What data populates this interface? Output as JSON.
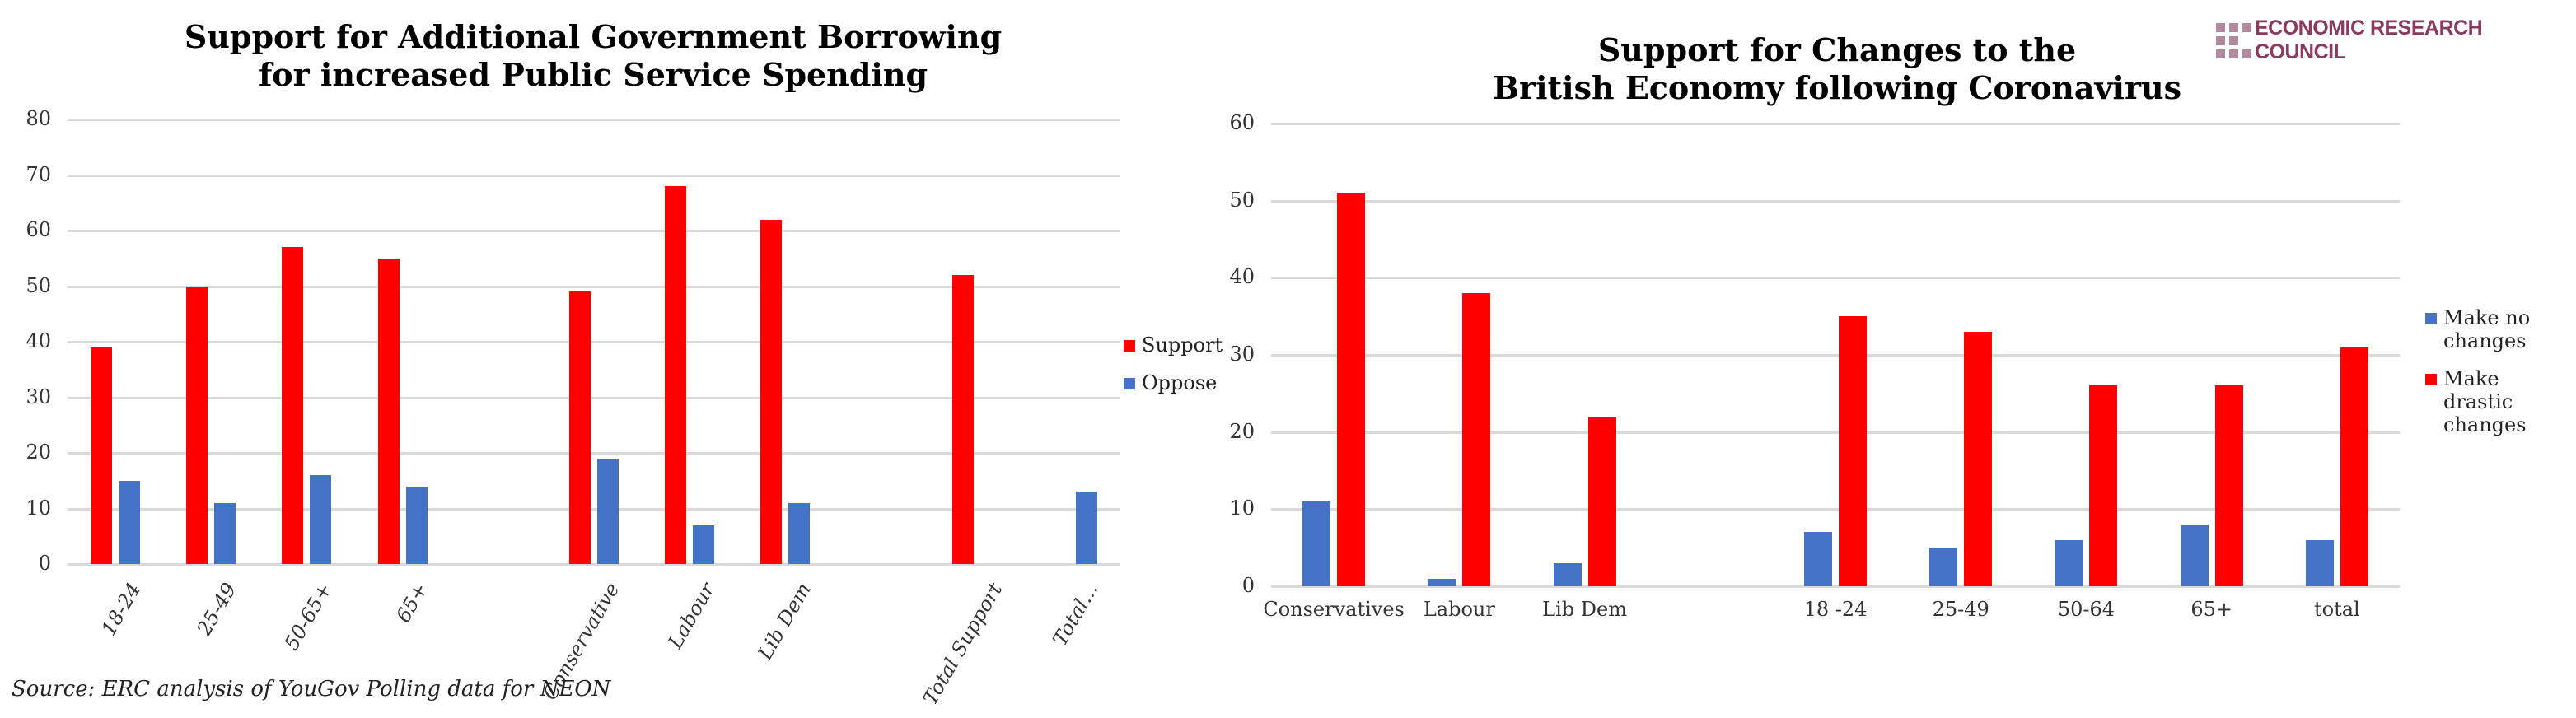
{
  "logo": {
    "text": "ECONOMIC RESEARCH COUNCIL",
    "color": "#8a3a5e"
  },
  "source": "Source: ERC analysis of YouGov Polling data for NEON",
  "colors": {
    "support": "#ff0000",
    "oppose": "#4472c4"
  },
  "left_chart": {
    "title_line1": "Support for Additional Government Borrowing",
    "title_line2": "for increased Public Service Spending",
    "y_ticks": [
      "0",
      "10",
      "20",
      "30",
      "40",
      "50",
      "60",
      "70",
      "80"
    ],
    "legend": [
      {
        "label": "Support",
        "color": "#ff0000"
      },
      {
        "label": "Oppose",
        "color": "#4472c4"
      }
    ]
  },
  "right_chart": {
    "title_line1": "Support for Changes to the",
    "title_line2": "British Economy following Coronavirus",
    "y_ticks": [
      "0",
      "10",
      "20",
      "30",
      "40",
      "50",
      "60"
    ],
    "legend": [
      {
        "label": "Make no changes",
        "color": "#4472c4"
      },
      {
        "label": "Make drastic changes",
        "color": "#ff0000"
      }
    ]
  },
  "chart_data": [
    {
      "type": "bar",
      "title": "Support for Additional Government Borrowing for increased Public Service Spending",
      "xlabel": "",
      "ylabel": "",
      "ylim": [
        0,
        80
      ],
      "grid": true,
      "legend_position": "right",
      "categories": [
        "18-24",
        "25-49",
        "50-65+",
        "65+",
        "",
        "Conservative",
        "Labour",
        "Lib Dem",
        "",
        "Total Support",
        "Total..."
      ],
      "series": [
        {
          "name": "Support",
          "color": "#ff0000",
          "values": [
            39,
            50,
            57,
            55,
            null,
            49,
            68,
            62,
            null,
            52,
            null
          ]
        },
        {
          "name": "Oppose",
          "color": "#4472c4",
          "values": [
            15,
            11,
            16,
            14,
            null,
            19,
            7,
            11,
            null,
            null,
            13
          ]
        }
      ]
    },
    {
      "type": "bar",
      "title": "Support for Changes to the British Economy following Coronavirus",
      "xlabel": "",
      "ylabel": "",
      "ylim": [
        0,
        60
      ],
      "grid": true,
      "legend_position": "right",
      "categories": [
        "Conservatives",
        "Labour",
        "Lib Dem",
        "",
        "18 -24",
        "25-49",
        "50-64",
        "65+",
        "total"
      ],
      "series": [
        {
          "name": "Make no changes",
          "color": "#4472c4",
          "values": [
            11,
            1,
            3,
            null,
            7,
            5,
            6,
            8,
            6
          ]
        },
        {
          "name": "Make drastic changes",
          "color": "#ff0000",
          "values": [
            51,
            38,
            22,
            null,
            35,
            33,
            26,
            26,
            31
          ]
        }
      ]
    }
  ]
}
